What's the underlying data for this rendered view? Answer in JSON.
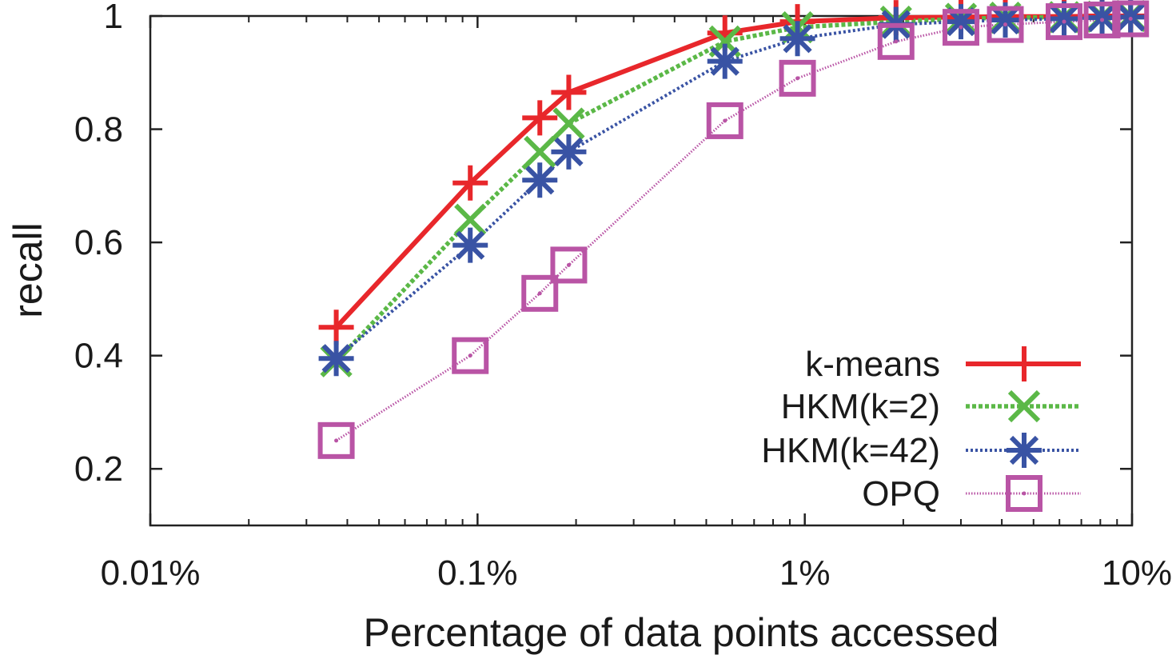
{
  "chart_data": {
    "type": "line",
    "xlabel": "Percentage of data points accessed",
    "ylabel": "recall",
    "x_scale": "log",
    "xlim": [
      0.01,
      10
    ],
    "ylim": [
      0.1,
      1.0
    ],
    "x_ticks": [
      {
        "value": 0.01,
        "label": "0.01%"
      },
      {
        "value": 0.1,
        "label": "0.1%"
      },
      {
        "value": 1,
        "label": "1%"
      },
      {
        "value": 10,
        "label": "10%"
      }
    ],
    "y_ticks": [
      {
        "value": 0.2,
        "label": "0.2"
      },
      {
        "value": 0.4,
        "label": "0.4"
      },
      {
        "value": 0.6,
        "label": "0.6"
      },
      {
        "value": 0.8,
        "label": "0.8"
      },
      {
        "value": 1.0,
        "label": "1"
      }
    ],
    "grid": false,
    "legend_position": "bottom-right",
    "series": [
      {
        "name": "k-means",
        "color": "#e8272b",
        "marker": "plus",
        "dash": "solid",
        "points": [
          {
            "x": 0.037,
            "y": 0.45
          },
          {
            "x": 0.095,
            "y": 0.705
          },
          {
            "x": 0.155,
            "y": 0.82
          },
          {
            "x": 0.19,
            "y": 0.865
          },
          {
            "x": 0.57,
            "y": 0.97
          },
          {
            "x": 0.95,
            "y": 0.99
          },
          {
            "x": 1.9,
            "y": 0.997
          },
          {
            "x": 3.0,
            "y": 0.998
          },
          {
            "x": 4.1,
            "y": 0.999
          },
          {
            "x": 6.2,
            "y": 0.999
          },
          {
            "x": 8.1,
            "y": 1.0
          },
          {
            "x": 9.9,
            "y": 1.0
          }
        ]
      },
      {
        "name": "HKM(k=2)",
        "color": "#5bb847",
        "marker": "x",
        "dash": "dashed",
        "points": [
          {
            "x": 0.037,
            "y": 0.39
          },
          {
            "x": 0.095,
            "y": 0.64
          },
          {
            "x": 0.155,
            "y": 0.76
          },
          {
            "x": 0.19,
            "y": 0.81
          },
          {
            "x": 0.57,
            "y": 0.955
          },
          {
            "x": 0.95,
            "y": 0.98
          },
          {
            "x": 1.9,
            "y": 0.99
          },
          {
            "x": 3.0,
            "y": 0.995
          },
          {
            "x": 4.1,
            "y": 0.997
          },
          {
            "x": 6.2,
            "y": 0.998
          },
          {
            "x": 8.1,
            "y": 0.999
          },
          {
            "x": 9.9,
            "y": 1.0
          }
        ]
      },
      {
        "name": "HKM(k=42)",
        "color": "#3953a4",
        "marker": "asterisk",
        "dash": "dotted",
        "points": [
          {
            "x": 0.037,
            "y": 0.395
          },
          {
            "x": 0.095,
            "y": 0.595
          },
          {
            "x": 0.155,
            "y": 0.71
          },
          {
            "x": 0.19,
            "y": 0.76
          },
          {
            "x": 0.57,
            "y": 0.92
          },
          {
            "x": 0.95,
            "y": 0.96
          },
          {
            "x": 1.9,
            "y": 0.985
          },
          {
            "x": 3.0,
            "y": 0.99
          },
          {
            "x": 4.1,
            "y": 0.993
          },
          {
            "x": 6.2,
            "y": 0.995
          },
          {
            "x": 8.1,
            "y": 0.997
          },
          {
            "x": 9.9,
            "y": 0.998
          }
        ]
      },
      {
        "name": "OPQ",
        "color": "#b954a5",
        "marker": "square",
        "dash": "fine-dotted",
        "points": [
          {
            "x": 0.037,
            "y": 0.25
          },
          {
            "x": 0.095,
            "y": 0.4
          },
          {
            "x": 0.155,
            "y": 0.51
          },
          {
            "x": 0.19,
            "y": 0.56
          },
          {
            "x": 0.57,
            "y": 0.815
          },
          {
            "x": 0.95,
            "y": 0.89
          },
          {
            "x": 1.9,
            "y": 0.955
          },
          {
            "x": 3.0,
            "y": 0.98
          },
          {
            "x": 4.1,
            "y": 0.985
          },
          {
            "x": 6.2,
            "y": 0.99
          },
          {
            "x": 8.1,
            "y": 0.993
          },
          {
            "x": 9.9,
            "y": 0.995
          }
        ]
      }
    ]
  }
}
